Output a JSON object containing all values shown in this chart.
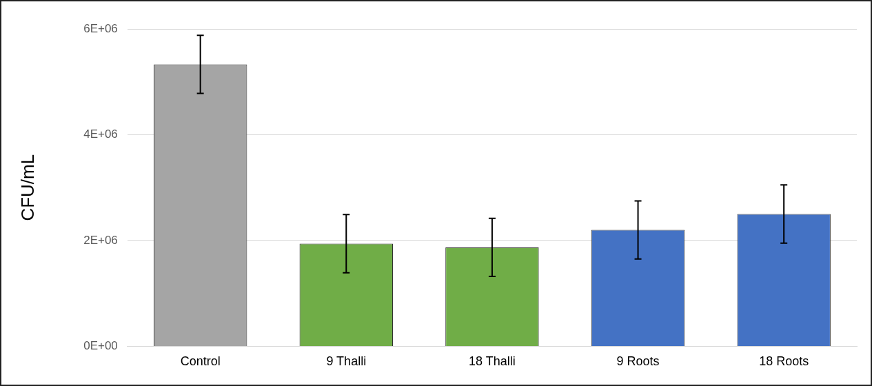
{
  "chart_data": {
    "type": "bar",
    "ylabel": "CFU/mL",
    "categories": [
      "Control",
      "9 Thalli",
      "18 Thalli",
      "9 Roots",
      "18 Roots"
    ],
    "values": [
      5330000,
      1940000,
      1870000,
      2200000,
      2500000
    ],
    "colors": [
      "#a5a5a5",
      "#70ad47",
      "#70ad47",
      "#4472c4",
      "#4472c4"
    ],
    "errors": [
      550000,
      550000,
      550000,
      550000,
      550000
    ],
    "ylim": [
      0,
      6000000
    ],
    "yticks": [
      {
        "value": 0,
        "label": "0E+00"
      },
      {
        "value": 2000000,
        "label": "2E+06"
      },
      {
        "value": 4000000,
        "label": "4E+06"
      },
      {
        "value": 6000000,
        "label": "6E+06"
      }
    ],
    "grid": "y",
    "legend": false
  }
}
